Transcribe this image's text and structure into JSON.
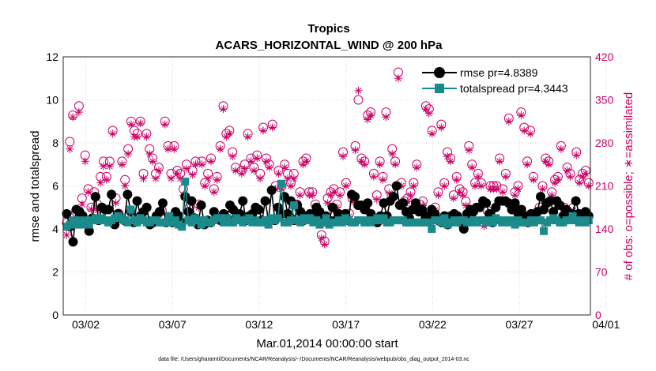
{
  "chart_data": {
    "type": "scatter",
    "title": "Tropics",
    "subtitle": "ACARS_HORIZONTAL_WIND @ 200 hPa",
    "xlabel": "Mar.01,2014 00:00:00 start",
    "ylabel_left": "rmse and totalspread",
    "ylabel_right": "# of obs: o=possible; ∗=assimilated",
    "footnote": "data file: /Users/gharamti/Documents/NCAR/Reanalysis/~/Documents/NCAR/Reanalysis/webpub/obs_diag_output_2014-03.nc",
    "xlim": [
      0.7,
      31.1
    ],
    "ylim_left": [
      0,
      12
    ],
    "ylim_right": [
      0,
      420
    ],
    "x_ticks": [
      {
        "value": 2,
        "label": "03/02"
      },
      {
        "value": 7,
        "label": "03/07"
      },
      {
        "value": 12,
        "label": "03/12"
      },
      {
        "value": 17,
        "label": "03/17"
      },
      {
        "value": 22,
        "label": "03/22"
      },
      {
        "value": 27,
        "label": "03/27"
      },
      {
        "value": 32,
        "label": "04/01"
      }
    ],
    "y_ticks_left": [
      "0",
      "2",
      "4",
      "6",
      "8",
      "10",
      "12"
    ],
    "y_ticks_right": [
      "0",
      "70",
      "140",
      "210",
      "280",
      "350",
      "420"
    ],
    "grid": true,
    "legend_position": "top-right",
    "colors": {
      "rmse": "#000000",
      "totalspread": "#1a8a8a",
      "obs": "#cc0066"
    },
    "series": [
      {
        "name": "rmse pr=4.8389",
        "axis": "left",
        "marker": "filled-circle",
        "line": true,
        "values": [
          4.7,
          4.1,
          3.4,
          4.9,
          4.8,
          4.6,
          4.3,
          3.9,
          4.5,
          5.5,
          4.4,
          5.0,
          4.9,
          4.9,
          5.6,
          4.2,
          4.7,
          4.5,
          4.4,
          5.6,
          4.8,
          4.3,
          5.3,
          4.6,
          4.8,
          5.0,
          4.2,
          4.3,
          4.6,
          4.8,
          5.2,
          4.3,
          4.4,
          4.3,
          4.8,
          4.6,
          4.3,
          5.5,
          4.8,
          5.3,
          4.5,
          4.2,
          5.1,
          4.2,
          4.4,
          4.3,
          4.8,
          4.5,
          4.4,
          4.7,
          4.5,
          5.1,
          4.9,
          4.6,
          4.7,
          5.3,
          4.4,
          4.6,
          4.7,
          5.0,
          4.9,
          4.4,
          5.3,
          4.4,
          5.8,
          4.4,
          5.0,
          4.7,
          5.5,
          4.7,
          5.3,
          4.4,
          5.1,
          4.8,
          4.4,
          4.6,
          4.7,
          4.5,
          5.0,
          4.8,
          4.6,
          4.6,
          4.4,
          5.0,
          4.4,
          4.7,
          4.6,
          4.7,
          4.4,
          5.6,
          5.5,
          5.1,
          5.1,
          4.9,
          5.2,
          4.7,
          4.5,
          4.3,
          4.6,
          5.2,
          4.6,
          5.3,
          5.5,
          6.0,
          5.1,
          5.2,
          4.8,
          4.5,
          4.9,
          5.2,
          4.8,
          4.9,
          4.5,
          4.6,
          4.9,
          4.7,
          4.4,
          4.3,
          4.6,
          4.2,
          4.6,
          4.7,
          4.6,
          4.3,
          4.0,
          4.7,
          4.9,
          4.8,
          5.0,
          5.0,
          5.3,
          5.2,
          4.7,
          4.3,
          5.0,
          5.3,
          5.3,
          5.3,
          5.2,
          4.9,
          5.2,
          4.7,
          4.9,
          4.6,
          4.3,
          4.7,
          4.6,
          4.8,
          5.5,
          4.9,
          5.2,
          5.3,
          4.8,
          5.3,
          5.1,
          4.6,
          4.9,
          4.5,
          4.7,
          5.3,
          4.7,
          4.6,
          4.8,
          4.6
        ]
      },
      {
        "name": "totalspread pr=4.3443",
        "axis": "left",
        "marker": "filled-square",
        "line": true,
        "values": [
          4.1,
          4.2,
          4.4,
          4.2,
          4.4,
          4.2,
          4.4,
          4.2,
          4.4,
          4.5,
          4.4,
          4.5,
          4.4,
          4.3,
          4.4,
          4.5,
          4.6,
          4.5,
          4.4,
          4.3,
          4.9,
          4.4,
          4.3,
          4.5,
          4.4,
          4.3,
          4.3,
          4.4,
          4.4,
          4.3,
          4.3,
          4.3,
          4.6,
          4.3,
          4.4,
          4.2,
          4.1,
          6.2,
          4.4,
          4.3,
          4.5,
          4.4,
          4.2,
          4.4,
          4.3,
          4.3,
          4.4,
          4.5,
          4.5,
          4.3,
          4.5,
          4.3,
          4.3,
          4.5,
          4.4,
          4.3,
          4.4,
          4.5,
          4.3,
          4.4,
          4.3,
          4.3,
          4.4,
          4.2,
          4.5,
          4.4,
          4.5,
          6.1,
          4.3,
          4.3,
          4.4,
          5.1,
          4.4,
          4.3,
          4.5,
          4.4,
          4.5,
          4.3,
          4.4,
          4.2,
          4.3,
          4.5,
          4.2,
          4.3,
          4.3,
          4.4,
          4.3,
          4.5,
          4.4,
          4.3,
          4.3,
          4.4,
          4.4,
          4.3,
          4.4,
          4.3,
          4.4,
          4.5,
          4.4,
          4.5,
          4.3,
          4.3,
          4.4,
          4.4,
          4.4,
          4.4,
          4.3,
          4.3,
          4.3,
          4.3,
          4.3,
          4.3,
          4.3,
          4.3,
          4.0,
          4.4,
          4.4,
          4.3,
          4.5,
          4.2,
          4.3,
          4.4,
          4.3,
          4.4,
          4.4,
          4.3,
          4.3,
          4.4,
          4.3,
          4.4,
          4.4,
          4.3,
          4.4,
          4.3,
          4.5,
          4.4,
          4.3,
          4.4,
          4.3,
          4.4,
          4.2,
          4.4,
          4.3,
          4.3,
          4.3,
          4.4,
          4.3,
          4.4,
          4.4,
          3.9,
          4.3,
          4.4,
          4.5,
          4.4,
          4.3,
          4.3,
          4.4,
          4.4,
          4.6,
          4.4,
          4.3,
          4.4,
          4.3,
          4.4
        ]
      },
      {
        "name": "possible",
        "axis": "right",
        "marker": "open-circle",
        "line": false,
        "values": [
          150,
          282,
          325,
          168,
          340,
          190,
          260,
          205,
          175,
          200,
          180,
          225,
          250,
          225,
          250,
          300,
          190,
          165,
          250,
          220,
          270,
          315,
          300,
          295,
          315,
          230,
          295,
          270,
          255,
          230,
          240,
          170,
          315,
          275,
          230,
          275,
          235,
          230,
          205,
          245,
          175,
          235,
          250,
          180,
          250,
          215,
          230,
          255,
          205,
          225,
          275,
          340,
          295,
          300,
          265,
          240,
          160,
          235,
          245,
          295,
          255,
          240,
          260,
          230,
          305,
          255,
          245,
          310,
          210,
          235,
          210,
          245,
          230,
          215,
          230,
          180,
          200,
          250,
          255,
          200,
          200,
          180,
          160,
          130,
          120,
          190,
          200,
          205,
          180,
          200,
          265,
          215,
          165,
          190,
          275,
          350,
          255,
          250,
          325,
          330,
          230,
          195,
          250,
          225,
          330,
          205,
          270,
          250,
          395,
          215,
          185,
          190,
          200,
          215,
          245,
          180,
          185,
          340,
          335,
          300,
          175,
          200,
          310,
          215,
          265,
          255,
          195,
          225,
          205,
          200,
          185,
          275,
          245,
          215,
          230,
          215,
          150,
          170,
          210,
          210,
          210,
          255,
          205,
          230,
          320,
          175,
          200,
          210,
          330,
          305,
          250,
          300,
          225,
          160,
          175,
          210,
          255,
          250,
          200,
          220,
          225,
          275,
          175,
          240,
          230,
          175,
          265,
          220,
          230,
          235,
          215
        ]
      },
      {
        "name": "assimilated",
        "axis": "right",
        "marker": "asterisk",
        "line": false,
        "values": [
          130,
          270,
          322,
          172,
          330,
          180,
          250,
          200,
          172,
          192,
          170,
          215,
          242,
          220,
          242,
          295,
          182,
          162,
          245,
          210,
          262,
          310,
          290,
          290,
          312,
          222,
          290,
          262,
          250,
          222,
          235,
          165,
          310,
          270,
          222,
          270,
          230,
          222,
          195,
          238,
          168,
          228,
          245,
          175,
          245,
          210,
          222,
          250,
          200,
          220,
          270,
          335,
          290,
          295,
          258,
          235,
          155,
          230,
          238,
          290,
          250,
          235,
          255,
          222,
          300,
          250,
          240,
          305,
          205,
          230,
          205,
          240,
          222,
          210,
          222,
          175,
          195,
          245,
          250,
          195,
          195,
          175,
          155,
          125,
          115,
          182,
          195,
          200,
          175,
          195,
          258,
          210,
          160,
          185,
          268,
          365,
          250,
          245,
          318,
          325,
          225,
          188,
          245,
          220,
          322,
          198,
          262,
          245,
          385,
          210,
          178,
          185,
          195,
          210,
          240,
          175,
          178,
          335,
          328,
          295,
          170,
          195,
          305,
          210,
          258,
          250,
          190,
          220,
          200,
          195,
          178,
          268,
          240,
          210,
          225,
          210,
          145,
          165,
          205,
          205,
          205,
          250,
          200,
          225,
          315,
          170,
          195,
          205,
          325,
          300,
          245,
          295,
          220,
          155,
          170,
          205,
          250,
          245,
          195,
          215,
          220,
          270,
          170,
          235,
          225,
          170,
          260,
          215,
          225,
          230,
          210
        ]
      }
    ]
  }
}
